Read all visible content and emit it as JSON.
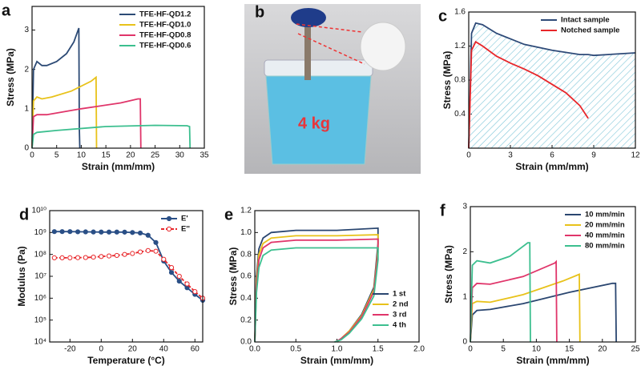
{
  "chart_data": [
    {
      "type": "line",
      "panel_label": "a",
      "xlabel": "Strain (mm/mm)",
      "ylabel": "Stress (MPa)",
      "xlim": [
        0,
        35
      ],
      "ylim": [
        0,
        3.6
      ],
      "xticks": [
        0,
        5,
        10,
        15,
        20,
        25,
        30,
        35
      ],
      "yticks": [
        0,
        1,
        2,
        3
      ],
      "legend": "upper right",
      "series": [
        {
          "name": "TFE-HF-QD1.2",
          "color": "#2c4a75",
          "x": [
            0,
            0.3,
            1,
            2,
            3,
            5,
            7,
            8.5,
            9.5,
            9.6,
            9.7
          ],
          "values": [
            0,
            2.0,
            2.2,
            2.1,
            2.1,
            2.2,
            2.4,
            2.7,
            3.05,
            0.5,
            0
          ]
        },
        {
          "name": "TFE-HF-QD1.0",
          "color": "#e8c21a",
          "x": [
            0,
            0.3,
            1,
            2,
            4,
            8,
            12,
            13,
            13.1
          ],
          "values": [
            0,
            1.2,
            1.3,
            1.25,
            1.3,
            1.45,
            1.7,
            1.8,
            0
          ]
        },
        {
          "name": "TFE-HF-QD0.8",
          "color": "#e0356a",
          "x": [
            0,
            0.3,
            1,
            3,
            10,
            18,
            21.5,
            22,
            22.1
          ],
          "values": [
            0,
            0.8,
            0.85,
            0.85,
            1.0,
            1.15,
            1.25,
            1.25,
            0
          ]
        },
        {
          "name": "TFE-HF-QD0.6",
          "color": "#3cbf8f",
          "x": [
            0,
            0.3,
            1,
            5,
            15,
            25,
            31.5,
            32,
            32.1
          ],
          "values": [
            0,
            0.35,
            0.4,
            0.45,
            0.55,
            0.58,
            0.57,
            0.55,
            0
          ]
        }
      ]
    },
    {
      "type": "line",
      "panel_label": "c",
      "xlabel": "Strain (mm/mm)",
      "ylabel": "Stress (MPa)",
      "xlim": [
        0,
        12
      ],
      "ylim": [
        0,
        1.6
      ],
      "xticks": [
        0,
        3,
        6,
        9,
        12
      ],
      "yticks": [
        0.4,
        0.8,
        1.2,
        1.6
      ],
      "legend": "upper right",
      "hatch": true,
      "series": [
        {
          "name": "Intact sample",
          "color": "#2e4a78",
          "x": [
            0,
            0.2,
            0.5,
            1,
            2,
            4,
            6,
            8,
            8.6,
            9,
            12
          ],
          "values": [
            0,
            1.35,
            1.47,
            1.45,
            1.35,
            1.22,
            1.15,
            1.1,
            1.1,
            1.09,
            1.12
          ]
        },
        {
          "name": "Notched sample",
          "color": "#e8262a",
          "x": [
            0,
            0.2,
            0.5,
            1,
            2,
            3,
            4,
            5,
            6,
            7,
            8,
            8.6
          ],
          "values": [
            0,
            1.15,
            1.25,
            1.2,
            1.08,
            1.0,
            0.93,
            0.85,
            0.75,
            0.65,
            0.5,
            0.35
          ]
        }
      ]
    },
    {
      "type": "line",
      "panel_label": "d",
      "xlabel": "Temperature (°C)",
      "ylabel": "Modulus (Pa)",
      "yscale": "log",
      "xlim": [
        -33,
        65
      ],
      "ylim": [
        10000,
        10000000000
      ],
      "xticks": [
        -20,
        0,
        20,
        40,
        60
      ],
      "yticks": [
        {
          "value": 10000,
          "label": "10⁴"
        },
        {
          "value": 100000,
          "label": "10⁵"
        },
        {
          "value": 1000000,
          "label": "10⁶"
        },
        {
          "value": 10000000,
          "label": "10⁷"
        },
        {
          "value": 100000000,
          "label": "10⁸"
        },
        {
          "value": 1000000000,
          "label": "10⁹"
        },
        {
          "value": 10000000000,
          "label": "10¹⁰"
        }
      ],
      "legend": "upper right",
      "series": [
        {
          "name": "E'",
          "color": "#2a4f86",
          "marker": "filled",
          "x": [
            -30,
            -25,
            -20,
            -15,
            -10,
            -5,
            0,
            5,
            10,
            15,
            20,
            25,
            30,
            35,
            40,
            45,
            50,
            55,
            60,
            65
          ],
          "values": [
            1100000000,
            1100000000,
            1100000000,
            1080000000,
            1070000000,
            1060000000,
            1050000000,
            1050000000,
            1050000000,
            1040000000,
            1000000000,
            950000000,
            750000000,
            350000000,
            50000000,
            15000000,
            6000000,
            3000000,
            1500000,
            800000
          ]
        },
        {
          "name": "E''",
          "color": "#e8262a",
          "marker": "open",
          "dash": true,
          "x": [
            -30,
            -25,
            -20,
            -15,
            -10,
            -5,
            0,
            5,
            10,
            15,
            20,
            25,
            30,
            35,
            40,
            45,
            50,
            55,
            60,
            65
          ],
          "values": [
            70000000,
            70000000,
            70000000,
            71000000,
            72000000,
            75000000,
            80000000,
            85000000,
            90000000,
            100000000,
            110000000,
            130000000,
            150000000,
            140000000,
            60000000,
            25000000,
            10000000,
            4500000,
            2000000,
            1000000
          ]
        }
      ]
    },
    {
      "type": "line",
      "panel_label": "e",
      "xlabel": "Strain (mm/mm)",
      "ylabel": "Stress (MPa)",
      "xlim": [
        0,
        2
      ],
      "ylim": [
        0,
        1.2
      ],
      "xticks": [
        {
          "value": 0,
          "label": "0.0"
        },
        0.5,
        {
          "value": 1,
          "label": "1.0"
        },
        1.5,
        {
          "value": 2,
          "label": "2.0"
        }
      ],
      "yticks": [
        {
          "value": 0,
          "label": "0.0"
        },
        0.2,
        0.4,
        0.6,
        0.8,
        {
          "value": 1,
          "label": "1.0"
        },
        1.2
      ],
      "legend": "lower right",
      "series": [
        {
          "name": "1 st",
          "color": "#2a4670",
          "x": [
            0,
            0.02,
            0.05,
            0.1,
            0.2,
            0.5,
            1.0,
            1.5,
            1.5,
            1.45,
            1.3,
            1.15,
            1.05,
            1.0
          ],
          "values": [
            0,
            0.6,
            0.85,
            0.95,
            1.0,
            1.02,
            1.02,
            1.04,
            0.9,
            0.5,
            0.25,
            0.1,
            0.03,
            0
          ]
        },
        {
          "name": "2 nd",
          "color": "#e8c21a",
          "x": [
            0,
            0.02,
            0.05,
            0.1,
            0.2,
            0.5,
            1.0,
            1.5,
            1.5,
            1.45,
            1.3,
            1.15,
            1.05,
            1.0
          ],
          "values": [
            0,
            0.55,
            0.8,
            0.9,
            0.95,
            0.97,
            0.97,
            0.98,
            0.85,
            0.48,
            0.24,
            0.1,
            0.03,
            0
          ]
        },
        {
          "name": "3 rd",
          "color": "#e0356a",
          "x": [
            0,
            0.02,
            0.05,
            0.1,
            0.2,
            0.5,
            1.0,
            1.5,
            1.5,
            1.45,
            1.3,
            1.15,
            1.05,
            0.98
          ],
          "values": [
            0,
            0.5,
            0.75,
            0.86,
            0.91,
            0.93,
            0.93,
            0.94,
            0.82,
            0.46,
            0.23,
            0.09,
            0.03,
            0
          ]
        },
        {
          "name": "4 th",
          "color": "#3cbf8f",
          "x": [
            0,
            0.02,
            0.05,
            0.1,
            0.2,
            0.5,
            1.0,
            1.5,
            1.5,
            1.45,
            1.3,
            1.15,
            1.05,
            0.97
          ],
          "values": [
            0,
            0.45,
            0.68,
            0.79,
            0.84,
            0.86,
            0.86,
            0.86,
            0.75,
            0.42,
            0.21,
            0.08,
            0.02,
            0
          ]
        }
      ]
    },
    {
      "type": "line",
      "panel_label": "f",
      "xlabel": "Strain (mm/mm)",
      "ylabel": "Stress (MPa)",
      "xlim": [
        0,
        25
      ],
      "ylim": [
        0,
        3
      ],
      "xticks": [
        0,
        5,
        10,
        15,
        20,
        25
      ],
      "yticks": [
        0,
        1,
        2,
        3
      ],
      "legend": "upper right",
      "series": [
        {
          "name": "10 mm/min",
          "color": "#2a4670",
          "x": [
            0,
            0.3,
            1,
            3,
            8,
            15,
            21.5,
            22,
            22.1
          ],
          "values": [
            0,
            0.6,
            0.7,
            0.72,
            0.85,
            1.1,
            1.3,
            1.3,
            0
          ]
        },
        {
          "name": "20 mm/min",
          "color": "#e8c21a",
          "x": [
            0,
            0.3,
            1,
            3,
            8,
            14,
            16.5,
            16.6
          ],
          "values": [
            0,
            0.85,
            0.9,
            0.88,
            1.05,
            1.35,
            1.5,
            0
          ]
        },
        {
          "name": "40 mm/min",
          "color": "#e0356a",
          "x": [
            0,
            0.3,
            1,
            3,
            8,
            12.8,
            13,
            13.1
          ],
          "values": [
            0,
            1.2,
            1.3,
            1.28,
            1.45,
            1.75,
            1.78,
            0
          ]
        },
        {
          "name": "80 mm/min",
          "color": "#3cbf8f",
          "x": [
            0,
            0.3,
            1,
            3,
            6,
            8.7,
            9,
            9.1
          ],
          "values": [
            0,
            1.7,
            1.8,
            1.75,
            1.9,
            2.2,
            2.2,
            0
          ]
        }
      ]
    }
  ],
  "photo_panel": {
    "panel_label": "b",
    "text": "4 kg"
  }
}
